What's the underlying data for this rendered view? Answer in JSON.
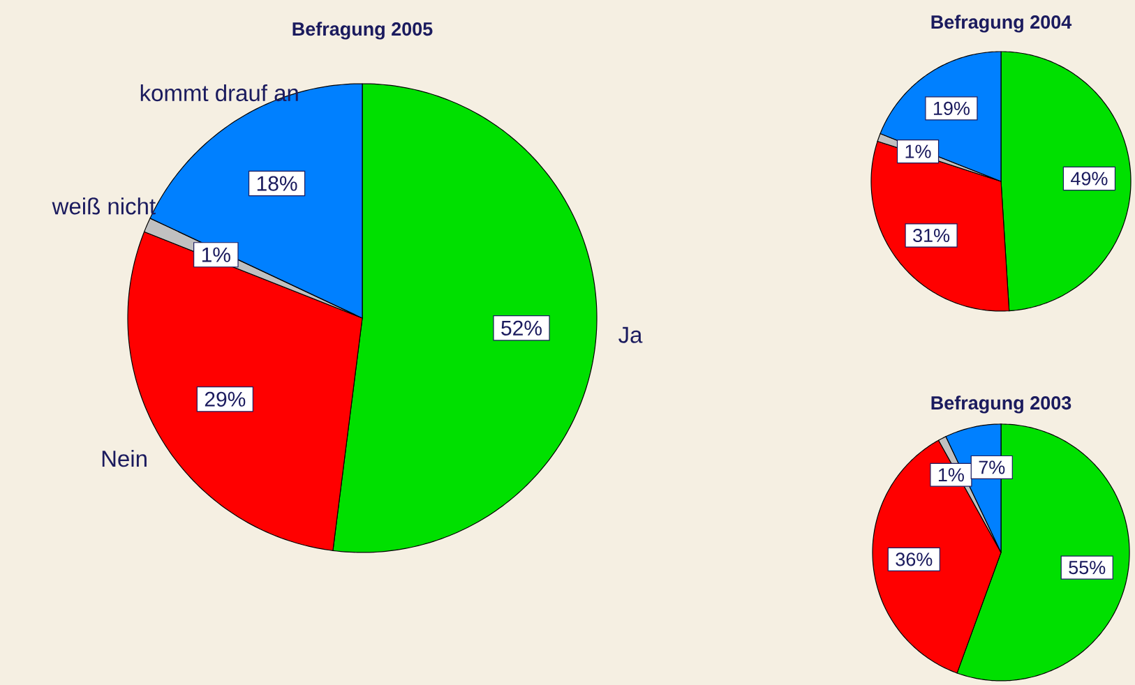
{
  "chart_data": [
    {
      "type": "pie",
      "title": "Befragung 2005",
      "categories": [
        "Ja",
        "Nein",
        "weiß nicht",
        "kommt drauf an"
      ],
      "values": [
        52,
        29,
        1,
        18
      ],
      "colors": [
        "#00e000",
        "#ff0000",
        "#c0c0c0",
        "#0080ff"
      ],
      "value_labels": [
        "52%",
        "29%",
        "1%",
        "18%"
      ]
    },
    {
      "type": "pie",
      "title": "Befragung 2004",
      "categories": [
        null,
        null,
        null,
        null
      ],
      "values": [
        49,
        31,
        1,
        19
      ],
      "colors": [
        "#00e000",
        "#ff0000",
        "#c0c0c0",
        "#0080ff"
      ],
      "value_labels": [
        "49%",
        "31%",
        "1%",
        "19%"
      ]
    },
    {
      "type": "pie",
      "title": "Befragung 2003",
      "categories": [
        null,
        null,
        null,
        null
      ],
      "values": [
        55,
        36,
        1,
        7
      ],
      "colors": [
        "#00e000",
        "#ff0000",
        "#c0c0c0",
        "#0080ff"
      ],
      "value_labels": [
        "55%",
        "36%",
        "1%",
        "7%"
      ]
    }
  ]
}
